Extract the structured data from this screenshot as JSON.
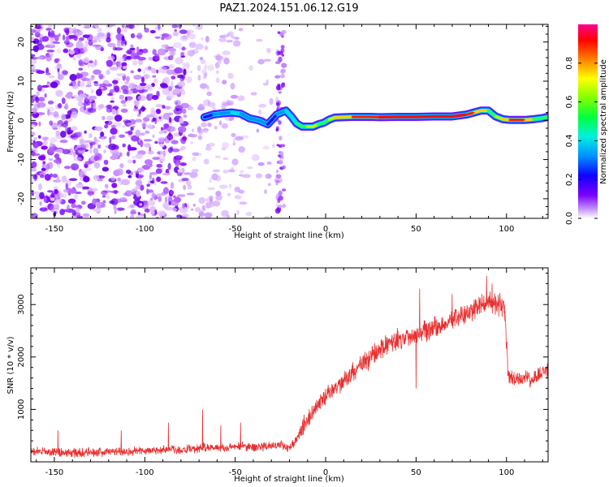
{
  "figure": {
    "title": "PAZ1.2024.151.06.12.G19"
  },
  "chart_data": [
    {
      "type": "heatmap",
      "xlabel": "Height of straight line (km)",
      "ylabel": "Frequency (Hz)",
      "xlim": [
        -163,
        123
      ],
      "ylim": [
        -25,
        24.5
      ],
      "x_ticks": [
        -150,
        -100,
        -50,
        0,
        50,
        100
      ],
      "y_ticks": [
        -20,
        -10,
        0,
        10,
        20
      ],
      "colorbar": {
        "label": "Normalized spectral amplitude",
        "range": [
          0,
          1
        ],
        "ticks": [
          0.0,
          0.2,
          0.4,
          0.6,
          0.8
        ],
        "colormap": [
          "#ffffff",
          "#9b30ff",
          "#3a00ff",
          "#0050ff",
          "#00d0ff",
          "#00ff60",
          "#80ff00",
          "#ffff00",
          "#ff8000",
          "#ff0000",
          "#ff0080"
        ]
      },
      "noise_region_x": [
        -163,
        -25
      ],
      "signal_ridge": {
        "x": [
          -67,
          -62,
          -57,
          -52,
          -47,
          -42,
          -37,
          -32,
          -27,
          -22,
          -19,
          -16,
          -13,
          -10,
          -7,
          -4,
          -1,
          2,
          5,
          10,
          15,
          20,
          25,
          30,
          40,
          50,
          60,
          70,
          78,
          82,
          86,
          90,
          94,
          98,
          102,
          106,
          110,
          115,
          120,
          123
        ],
        "freq_hz": [
          0.8,
          1.5,
          1.8,
          2.0,
          1.7,
          0.5,
          0.0,
          -1.0,
          1.5,
          2.5,
          1.0,
          -0.8,
          -1.6,
          -1.6,
          -1.6,
          -1.0,
          -0.6,
          0.2,
          0.7,
          0.8,
          0.9,
          0.9,
          0.9,
          0.8,
          0.9,
          0.9,
          1.0,
          1.0,
          1.5,
          2.0,
          2.5,
          2.5,
          1.0,
          0.3,
          0.1,
          0.1,
          0.1,
          0.3,
          0.6,
          0.9
        ],
        "amplitude": [
          0.3,
          0.35,
          0.4,
          0.45,
          0.45,
          0.35,
          0.4,
          0.35,
          0.3,
          0.5,
          0.45,
          0.55,
          0.6,
          0.7,
          0.75,
          0.7,
          0.6,
          0.65,
          0.75,
          0.8,
          0.85,
          0.88,
          0.9,
          0.92,
          0.95,
          0.97,
          0.98,
          0.96,
          0.9,
          0.85,
          0.8,
          0.7,
          0.6,
          0.75,
          0.85,
          0.9,
          0.85,
          0.7,
          0.6,
          0.55
        ]
      }
    },
    {
      "type": "line",
      "xlabel": "Height of straight line (km)",
      "ylabel": "SNR (10 * v/v)",
      "xlim": [
        -163,
        123
      ],
      "ylim": [
        0,
        3700
      ],
      "x_ticks": [
        -150,
        -100,
        -50,
        0,
        50,
        100
      ],
      "y_ticks": [
        1000,
        2000,
        3000
      ],
      "color": "#e83030",
      "series": [
        {
          "x": [
            -163,
            -150,
            -140,
            -130,
            -120,
            -110,
            -100,
            -90,
            -85,
            -80,
            -75,
            -70,
            -68,
            -65,
            -60,
            -55,
            -50,
            -45,
            -40,
            -35,
            -30,
            -25,
            -20,
            -18,
            -15,
            -10,
            -5,
            0,
            5,
            10,
            15,
            20,
            25,
            30,
            35,
            40,
            45,
            50,
            55,
            60,
            65,
            70,
            75,
            80,
            85,
            90,
            95,
            99,
            100,
            101,
            105,
            110,
            115,
            120,
            123
          ],
          "y": [
            200,
            180,
            170,
            180,
            190,
            200,
            210,
            230,
            250,
            220,
            240,
            250,
            300,
            260,
            280,
            270,
            290,
            300,
            280,
            290,
            300,
            320,
            280,
            350,
            500,
            800,
            1050,
            1250,
            1400,
            1550,
            1700,
            1850,
            2000,
            2150,
            2250,
            2330,
            2380,
            2450,
            2520,
            2560,
            2600,
            2700,
            2780,
            2870,
            2950,
            3050,
            3000,
            2950,
            2200,
            1600,
            1550,
            1600,
            1580,
            1700,
            1750
          ]
        }
      ],
      "spikes": {
        "x": [
          -148,
          -113,
          -87,
          -68,
          -58,
          -47,
          -12,
          15,
          40,
          50,
          52,
          70,
          89,
          92
        ],
        "y": [
          600,
          600,
          750,
          1000,
          700,
          750,
          900,
          1900,
          2500,
          1400,
          3300,
          3200,
          3550,
          3400
        ]
      }
    }
  ]
}
